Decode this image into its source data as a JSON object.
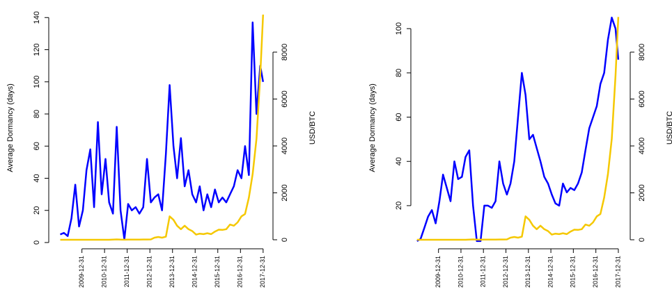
{
  "chart_data": [
    {
      "type": "line",
      "ylabel": "Average Dormancy (days)",
      "y2label": "USD/BTC",
      "x": [
        "2009-01-15",
        "2009-03-15",
        "2009-05-15",
        "2009-07-15",
        "2009-09-15",
        "2009-11-15",
        "2010-01-15",
        "2010-03-15",
        "2010-05-15",
        "2010-07-15",
        "2010-09-15",
        "2010-11-15",
        "2011-01-15",
        "2011-03-15",
        "2011-05-15",
        "2011-07-15",
        "2011-09-15",
        "2011-11-15",
        "2012-01-15",
        "2012-03-15",
        "2012-05-15",
        "2012-07-15",
        "2012-09-15",
        "2012-11-15",
        "2013-01-15",
        "2013-03-15",
        "2013-05-15",
        "2013-07-15",
        "2013-09-15",
        "2013-11-15",
        "2014-01-15",
        "2014-03-15",
        "2014-05-15",
        "2014-07-15",
        "2014-09-15",
        "2014-11-15",
        "2015-01-15",
        "2015-03-15",
        "2015-05-15",
        "2015-07-15",
        "2015-09-15",
        "2015-11-15",
        "2016-01-15",
        "2016-03-15",
        "2016-05-15",
        "2016-07-15",
        "2016-09-15",
        "2016-11-15",
        "2017-01-15",
        "2017-03-15",
        "2017-05-15",
        "2017-07-15",
        "2017-09-15",
        "2017-11-15",
        "2017-12-31"
      ],
      "xlim": [
        "2008-07-14",
        "2018-06-08"
      ],
      "xticks": [
        "2009-12-31",
        "2010-12-31",
        "2011-12-31",
        "2012-12-31",
        "2013-12-31",
        "2014-12-31",
        "2015-12-31",
        "2016-12-31",
        "2017-12-31"
      ],
      "ylim": [
        -3.9,
        146.6
      ],
      "yticks": [
        0,
        20,
        40,
        60,
        80,
        100,
        120,
        140
      ],
      "y2lim": [
        -385,
        9926
      ],
      "y2ticks": [
        0,
        2000,
        4000,
        6000,
        8000
      ],
      "series": [
        {
          "color": "#0000ff",
          "values": [
            5,
            6,
            4,
            15,
            36,
            10,
            20,
            45,
            58,
            22,
            75,
            30,
            52,
            25,
            18,
            72,
            20,
            2,
            24,
            20,
            22,
            18,
            22,
            52,
            25,
            28,
            30,
            20,
            55,
            98,
            60,
            40,
            65,
            35,
            45,
            30,
            25,
            35,
            20,
            30,
            22,
            33,
            25,
            28,
            25,
            30,
            35,
            45,
            40,
            60,
            42,
            137,
            80,
            110,
            100
          ]
        },
        {
          "color": "#f5c800",
          "axis": "y2",
          "values": [
            0,
            0,
            0,
            0,
            0,
            0,
            0,
            0,
            0,
            0.07,
            0.06,
            0.2,
            0.3,
            0.9,
            8,
            14,
            5,
            3,
            6,
            5,
            5,
            8,
            12,
            12,
            14,
            90,
            120,
            90,
            130,
            1000,
            850,
            600,
            450,
            600,
            450,
            370,
            220,
            260,
            240,
            280,
            240,
            350,
            430,
            420,
            450,
            650,
            600,
            740,
            1000,
            1100,
            1800,
            2800,
            4300,
            7000,
            9600
          ]
        }
      ]
    },
    {
      "type": "line",
      "ylabel": "Average Dormancy (days)",
      "y2label": "USD/BTC",
      "x": [
        "2009-01-15",
        "2009-03-15",
        "2009-05-15",
        "2009-07-15",
        "2009-09-15",
        "2009-11-15",
        "2010-01-15",
        "2010-03-15",
        "2010-05-15",
        "2010-07-15",
        "2010-09-15",
        "2010-11-15",
        "2011-01-15",
        "2011-03-15",
        "2011-05-15",
        "2011-07-15",
        "2011-09-15",
        "2011-11-15",
        "2012-01-15",
        "2012-03-15",
        "2012-05-15",
        "2012-07-15",
        "2012-09-15",
        "2012-11-15",
        "2013-01-15",
        "2013-03-15",
        "2013-05-15",
        "2013-07-15",
        "2013-09-15",
        "2013-11-15",
        "2014-01-15",
        "2014-03-15",
        "2014-05-15",
        "2014-07-15",
        "2014-09-15",
        "2014-11-15",
        "2015-01-15",
        "2015-03-15",
        "2015-05-15",
        "2015-07-15",
        "2015-09-15",
        "2015-11-15",
        "2016-01-15",
        "2016-03-15",
        "2016-05-15",
        "2016-07-15",
        "2016-09-15",
        "2016-11-15",
        "2017-01-15",
        "2017-03-15",
        "2017-05-15",
        "2017-07-15",
        "2017-09-15",
        "2017-11-15",
        "2017-12-31"
      ],
      "xlim": [
        "2008-10-08",
        "2018-07-12"
      ],
      "xticks": [
        "2009-12-31",
        "2010-12-31",
        "2011-12-31",
        "2012-12-31",
        "2013-12-31",
        "2014-12-31",
        "2015-12-31",
        "2016-12-31",
        "2017-12-31"
      ],
      "ylim": [
        0.5,
        109.8
      ],
      "yticks": [
        20,
        40,
        60,
        80,
        100
      ],
      "y2lim": [
        -385,
        9926
      ],
      "y2ticks": [
        0,
        2000,
        4000,
        6000,
        8000
      ],
      "series": [
        {
          "color": "#0000ff",
          "values": [
            4,
            5,
            10,
            15,
            18,
            12,
            22,
            34,
            28,
            22,
            40,
            32,
            33,
            42,
            45,
            20,
            4,
            4,
            20,
            20,
            19,
            22,
            40,
            30,
            25,
            30,
            40,
            60,
            80,
            70,
            50,
            52,
            46,
            40,
            33,
            30,
            25,
            21,
            20,
            30,
            26,
            28,
            27,
            30,
            35,
            45,
            55,
            60,
            65,
            75,
            80,
            95,
            105,
            100,
            86
          ]
        },
        {
          "color": "#f5c800",
          "axis": "y2",
          "values": [
            0,
            0,
            0,
            0,
            0,
            0,
            0,
            0,
            0,
            0.07,
            0.06,
            0.2,
            0.3,
            0.9,
            8,
            14,
            5,
            3,
            6,
            5,
            5,
            8,
            12,
            12,
            14,
            90,
            120,
            90,
            130,
            1000,
            850,
            600,
            450,
            600,
            450,
            370,
            220,
            260,
            240,
            280,
            240,
            350,
            430,
            420,
            450,
            650,
            600,
            740,
            1000,
            1100,
            1800,
            2800,
            4300,
            7000,
            9500
          ]
        }
      ]
    }
  ]
}
